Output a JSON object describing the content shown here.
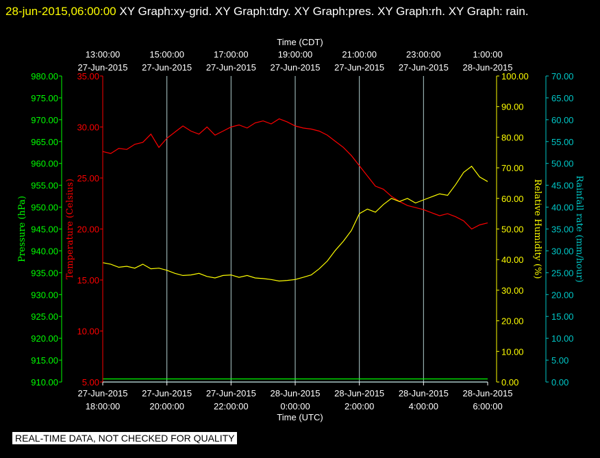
{
  "title": {
    "timestamp": "28-jun-2015,06:00:00",
    "text": "XY Graph:xy-grid.  XY Graph:tdry.  XY Graph:pres.  XY Graph:rh.  XY Graph: rain."
  },
  "quality_note": "REAL-TIME DATA, NOT CHECKED FOR QUALITY",
  "colors": {
    "pressure": "#00ff00",
    "temperature": "#ff0000",
    "humidity": "#ffff00",
    "rain": "#00c8c8",
    "grid": "#b4d2d2"
  },
  "chart_data": {
    "type": "line",
    "top_axis_title": "Time (CDT)",
    "bottom_axis_title": "Time (UTC)",
    "top_ticks": [
      [
        "13:00:00",
        "27-Jun-2015"
      ],
      [
        "15:00:00",
        "27-Jun-2015"
      ],
      [
        "17:00:00",
        "27-Jun-2015"
      ],
      [
        "19:00:00",
        "27-Jun-2015"
      ],
      [
        "21:00:00",
        "27-Jun-2015"
      ],
      [
        "23:00:00",
        "27-Jun-2015"
      ],
      [
        "1:00:00",
        "28-Jun-2015"
      ]
    ],
    "bottom_ticks": [
      [
        "27-Jun-2015",
        "18:00:00"
      ],
      [
        "27-Jun-2015",
        "20:00:00"
      ],
      [
        "27-Jun-2015",
        "22:00:00"
      ],
      [
        "28-Jun-2015",
        "0:00:00"
      ],
      [
        "28-Jun-2015",
        "2:00:00"
      ],
      [
        "28-Jun-2015",
        "4:00:00"
      ],
      [
        "28-Jun-2015",
        "6:00:00"
      ]
    ],
    "x_range_hours_utc": [
      18,
      30
    ],
    "axes": {
      "pressure": {
        "label": "Pressure (hPa)",
        "range": [
          910,
          980
        ],
        "ticks": [
          "910.00",
          "915.00",
          "920.00",
          "925.00",
          "930.00",
          "935.00",
          "940.00",
          "945.00",
          "950.00",
          "955.00",
          "960.00",
          "965.00",
          "970.00",
          "975.00",
          "980.00"
        ]
      },
      "temperature": {
        "label": "Temperature (Celsius)",
        "range": [
          5,
          35
        ],
        "ticks": [
          "5.00",
          "10.00",
          "15.00",
          "20.00",
          "25.00",
          "30.00",
          "35.00"
        ]
      },
      "humidity": {
        "label": "Relative Humidity (%)",
        "range": [
          0,
          100
        ],
        "ticks": [
          "0.00",
          "10.00",
          "20.00",
          "30.00",
          "40.00",
          "50.00",
          "60.00",
          "70.00",
          "80.00",
          "90.00",
          "100.00"
        ]
      },
      "rain": {
        "label": "Rainfall rate (mm/hour)",
        "range": [
          0,
          70
        ],
        "ticks": [
          "0.00",
          "5.00",
          "10.00",
          "15.00",
          "20.00",
          "25.00",
          "30.00",
          "35.00",
          "40.00",
          "45.00",
          "50.00",
          "55.00",
          "60.00",
          "65.00",
          "70.00"
        ]
      }
    },
    "series": [
      {
        "key": "temperature",
        "x": [
          18.0,
          18.25,
          18.5,
          18.75,
          19.0,
          19.25,
          19.5,
          19.75,
          20.0,
          20.25,
          20.5,
          20.75,
          21.0,
          21.25,
          21.5,
          21.75,
          22.0,
          22.25,
          22.5,
          22.75,
          23.0,
          23.25,
          23.5,
          23.75,
          24.0,
          24.25,
          24.5,
          24.75,
          25.0,
          25.25,
          25.5,
          25.75,
          26.0,
          26.25,
          26.5,
          26.75,
          27.0,
          27.25,
          27.5,
          27.75,
          28.0,
          28.25,
          28.5,
          28.75,
          29.0,
          29.25,
          29.5,
          29.75,
          30.0
        ],
        "y": [
          27.6,
          27.4,
          27.9,
          27.8,
          28.3,
          28.5,
          29.3,
          28.0,
          28.9,
          29.5,
          30.1,
          29.6,
          29.3,
          30.0,
          29.2,
          29.6,
          30.0,
          30.2,
          29.9,
          30.4,
          30.6,
          30.3,
          30.8,
          30.5,
          30.1,
          29.9,
          29.8,
          29.6,
          29.2,
          28.6,
          28.0,
          27.2,
          26.2,
          25.2,
          24.2,
          23.9,
          23.2,
          22.7,
          22.3,
          22.1,
          21.9,
          21.6,
          21.3,
          21.5,
          21.2,
          20.8,
          20.0,
          20.4,
          20.6
        ]
      },
      {
        "key": "humidity",
        "x": [
          18.0,
          18.25,
          18.5,
          18.75,
          19.0,
          19.25,
          19.5,
          19.75,
          20.0,
          20.25,
          20.5,
          20.75,
          21.0,
          21.25,
          21.5,
          21.75,
          22.0,
          22.25,
          22.5,
          22.75,
          23.0,
          23.25,
          23.5,
          23.75,
          24.0,
          24.25,
          24.5,
          24.75,
          25.0,
          25.25,
          25.5,
          25.75,
          26.0,
          26.25,
          26.5,
          26.75,
          27.0,
          27.25,
          27.5,
          27.75,
          28.0,
          28.25,
          28.5,
          28.75,
          29.0,
          29.25,
          29.5,
          29.75,
          30.0
        ],
        "y": [
          39.0,
          38.5,
          37.5,
          37.8,
          37.2,
          38.5,
          37.0,
          37.2,
          36.5,
          35.5,
          34.8,
          35.0,
          35.5,
          34.5,
          34.0,
          34.8,
          35.0,
          34.2,
          34.8,
          34.0,
          33.8,
          33.5,
          33.0,
          33.2,
          33.5,
          34.2,
          35.0,
          37.0,
          39.5,
          43.0,
          46.0,
          49.5,
          55.0,
          56.5,
          55.5,
          58.0,
          60.0,
          59.0,
          60.0,
          58.5,
          59.5,
          60.5,
          61.5,
          61.0,
          64.5,
          68.5,
          70.5,
          67.0,
          65.5
        ]
      },
      {
        "key": "pressure",
        "x": [
          18.0,
          30.0
        ],
        "y": [
          910.7,
          910.7
        ]
      },
      {
        "key": "rain",
        "x": [
          18.0,
          30.0
        ],
        "y": [
          0.0,
          0.0
        ]
      }
    ]
  }
}
